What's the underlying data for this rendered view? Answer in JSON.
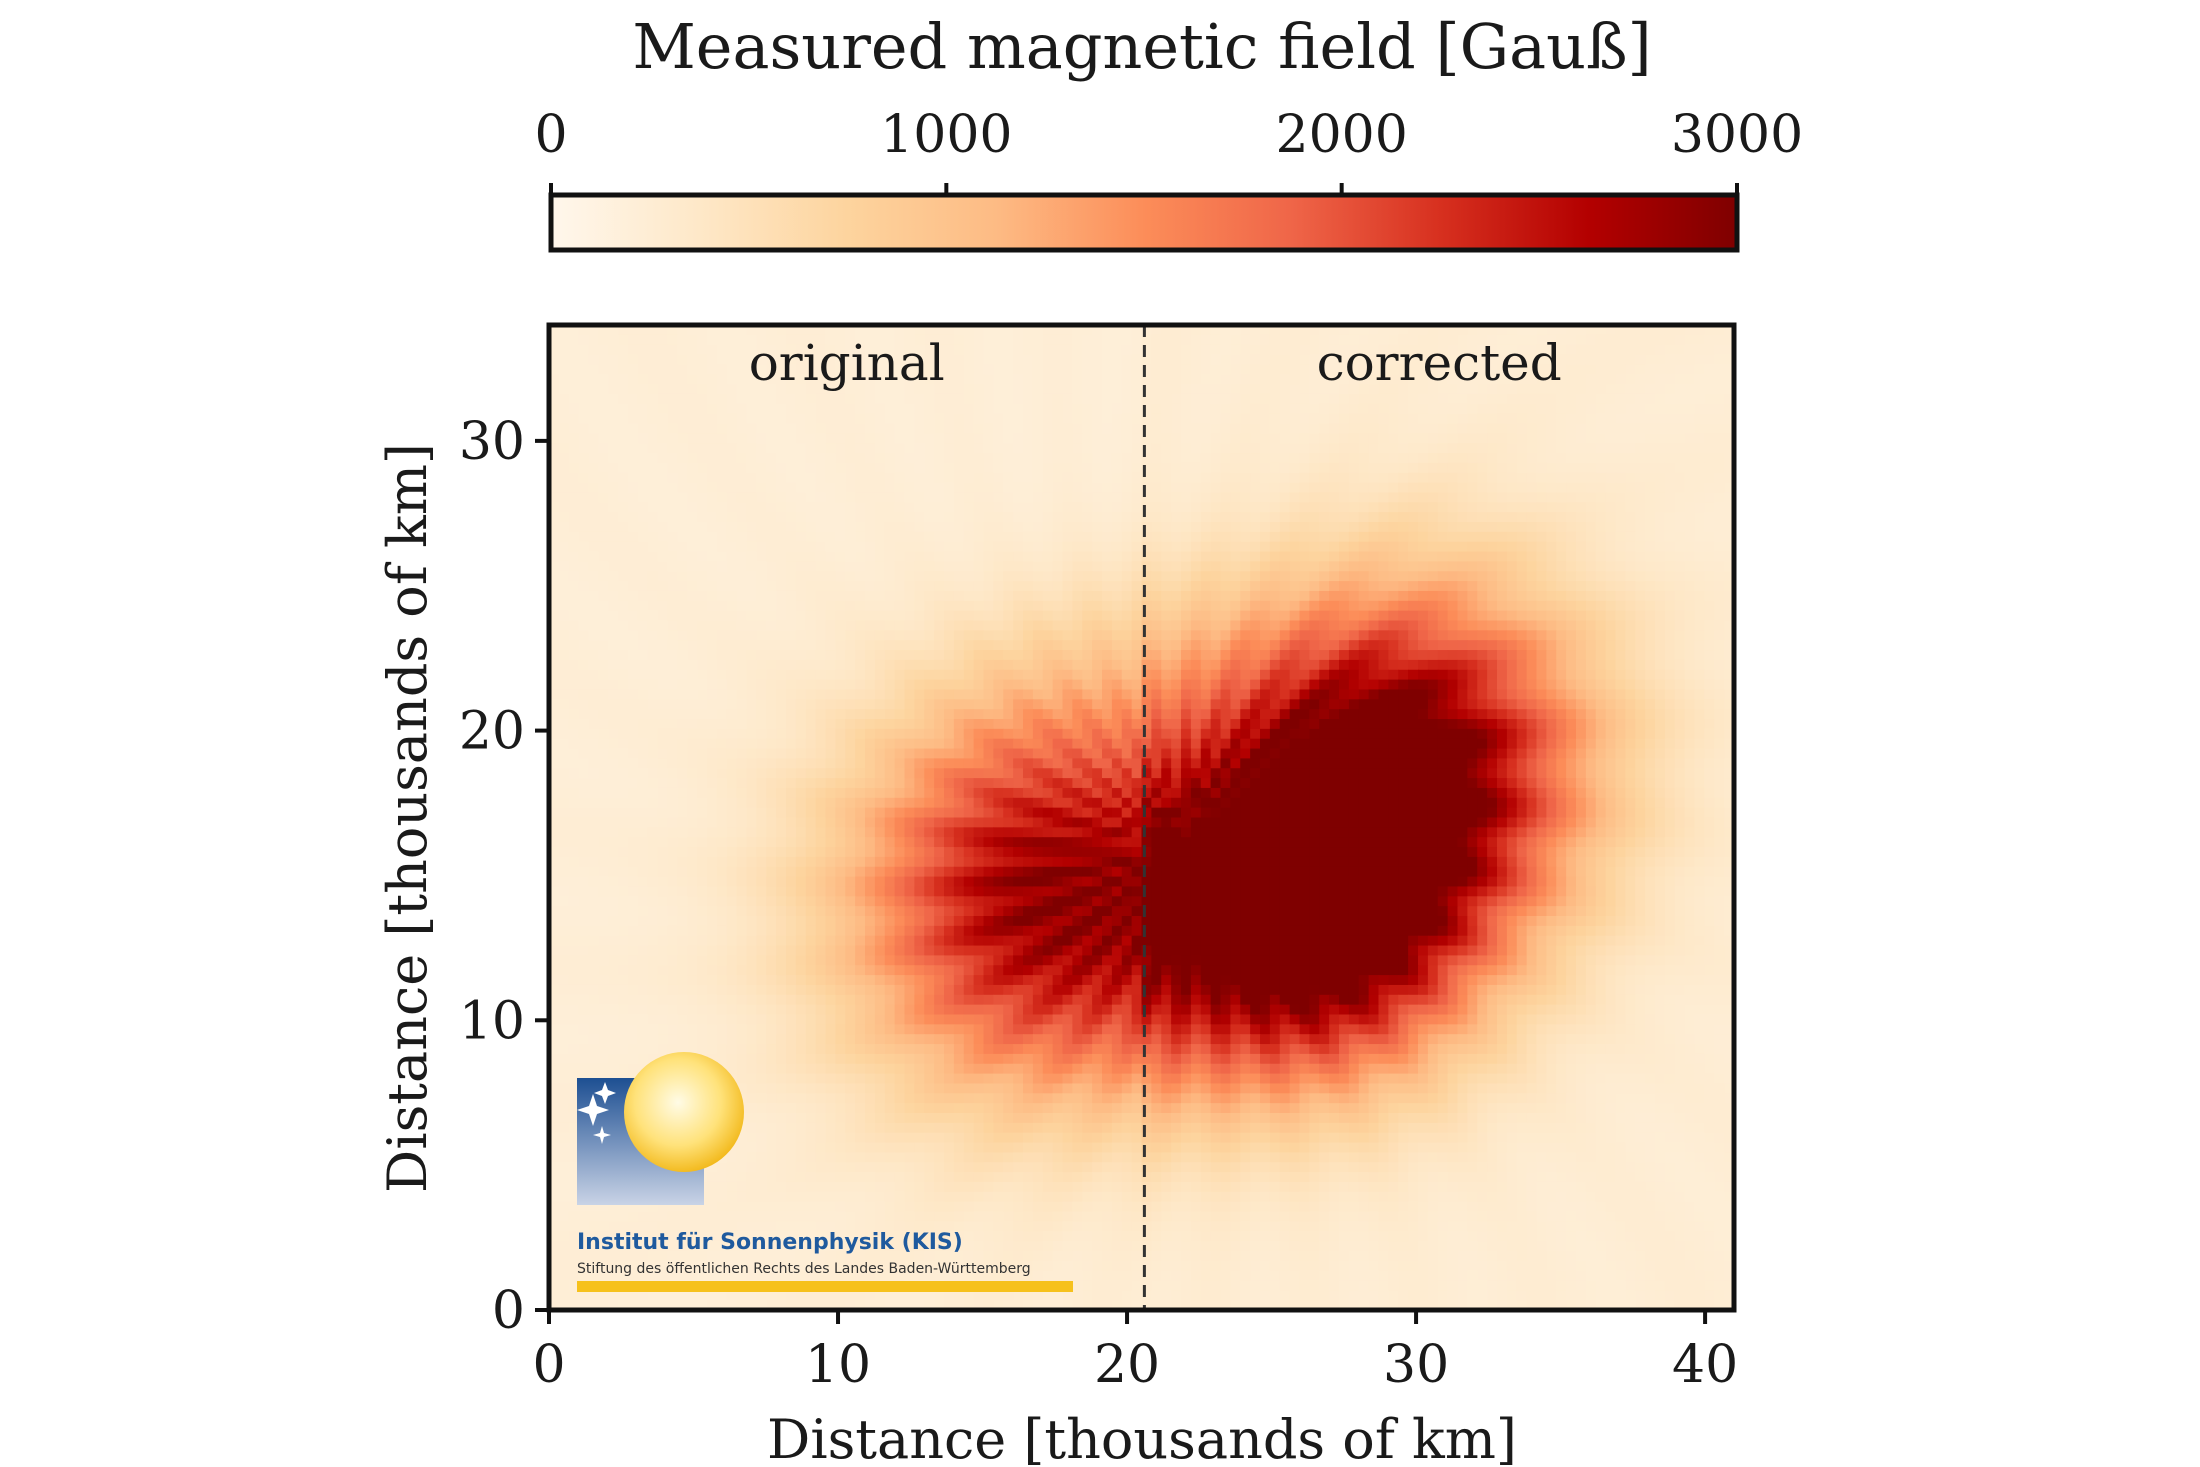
{
  "chart_data": {
    "type": "heatmap",
    "colorbar": {
      "label": "Measured magnetic field [Gauß]",
      "min": 0,
      "max": 3000,
      "ticks": [
        0,
        1000,
        2000,
        3000
      ],
      "tick_labels": [
        "0",
        "1000",
        "2000",
        "3000"
      ],
      "colormap": "OrRd",
      "colors": [
        "#fff7ec",
        "#fee8c8",
        "#fdd49e",
        "#fdbb84",
        "#fc8d59",
        "#ef6548",
        "#d7301f",
        "#b30000",
        "#7f0000"
      ]
    },
    "xlabel": "Distance [thousands of km]",
    "ylabel": "Distance [thousands of km]",
    "xlim": [
      0,
      41
    ],
    "ylim": [
      0,
      34
    ],
    "xticks": [
      0,
      10,
      20,
      30,
      40
    ],
    "xtick_labels": [
      "0",
      "10",
      "20",
      "30",
      "40"
    ],
    "yticks": [
      0,
      10,
      20,
      30
    ],
    "ytick_labels": [
      "0",
      "10",
      "20",
      "30"
    ],
    "divider_x": 20.6,
    "panel_labels": [
      "original",
      "corrected"
    ],
    "blobs": [
      {
        "cx": 16.5,
        "cy": 14.0,
        "r": 6.5,
        "peak": 2300
      },
      {
        "cx": 26.5,
        "cy": 13.5,
        "r": 5.5,
        "peak": 2500
      },
      {
        "cx": 30.0,
        "cy": 19.0,
        "r": 6.0,
        "peak": 2600
      }
    ],
    "background_field": 250,
    "penumbra_radius": 9.0
  },
  "logo": {
    "title": "Institut für Sonnenphysik (KIS)",
    "subtitle": "Stiftung des öffentlichen Rechts des Landes Baden-Württemberg"
  }
}
